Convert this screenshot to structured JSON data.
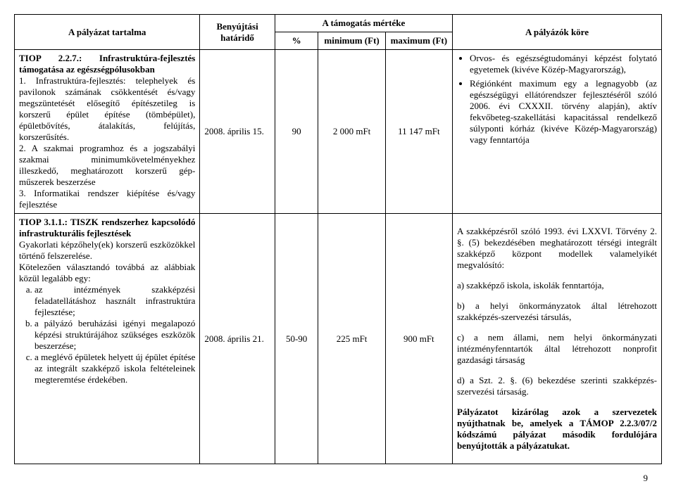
{
  "header": {
    "content": "A pályázat tartalma",
    "deadline": "Benyújtási határidő",
    "support": "A támogatás mértéke",
    "pct": "%",
    "min": "minimum (Ft)",
    "max": "maximum (Ft)",
    "scope": "A pályázók köre"
  },
  "rows": [
    {
      "content_title": "TIOP 2.2.7.: Infrastruktúra-fejlesztés támogatása az egészségpólusokban",
      "content_items": [
        "1. Infrastruktúra-fejlesztés: telephelyek és pavilonok számának csökkentését és/vagy megszüntetését elősegítő építészetileg is korszerű épület építése (tömbépület), épületbővítés, átalakítás, felújítás, korszerűsítés.",
        "2. A szakmai programhoz és a jogszabályi szakmai minimumkövetelményekhez illeszkedő, meghatározott korszerű gép-műszerek beszerzése",
        "3. Informatikai rendszer kiépítése és/vagy fejlesztése"
      ],
      "deadline": "2008. április 15.",
      "pct": "90",
      "min": "2 000 mFt",
      "max": "11 147 mFt",
      "scope_bullets": [
        "Orvos- és egészségtudományi képzést folytató egyetemek (kivéve Közép-Magyarország),",
        "Régiónként maximum egy a legnagyobb (az egészségügyi ellátórendszer fejlesztéséről szóló 2006. évi CXXXII. törvény alapján), aktív fekvőbeteg-szakellátási kapacitással rendelkező súlyponti kórház (kivéve Közép-Magyarország) vagy fenntartója"
      ]
    },
    {
      "content_title": "TIOP 3.1.1.: TISZK rendszerhez kapcsolódó infrastrukturális fejlesztések",
      "content_para1": "Gyakorlati képzőhely(ek) korszerű eszközökkel történő felszerelése.",
      "content_para2": "Kötelezően választandó továbbá az alábbiak közül legalább egy:",
      "content_letters": [
        "az intézmények szakképzési feladatellátáshoz használt infrastruktúra fejlesztése;",
        "a pályázó beruházási igényi megalapozó képzési struktúrájához szükséges eszközök beszerzése;",
        "a meglévő épületek helyett új épület építése az integrált szakképző iskola feltételeinek megteremtése érdekében."
      ],
      "deadline": "2008. április 21.",
      "pct": "50-90",
      "min": "225 mFt",
      "max": "900 mFt",
      "scope_intro": "A szakképzésről szóló 1993. évi LXXVI. Törvény 2. §. (5) bekezdésében meghatározott térségi integrált szakképző központ modellek valamelyikét megvalósító:",
      "scope_lines": [
        "a) szakképző iskola, iskolák fenntartója,",
        "b) a helyi önkormányzatok által létrehozott szakképzés-szervezési társulás,",
        "c) a nem állami, nem helyi önkormányzati intézményfenntartók által létrehozott nonprofit gazdasági társaság",
        "d) a Szt. 2. §. (6) bekezdése szerinti szakképzés-szervezési társaság."
      ],
      "scope_bold": "Pályázatot kizárólag azok a szervezetek nyújthatnak be, amelyek a TÁMOP 2.2.3/07/2 kódszámú pályázat második fordulójára benyújtották a pályázatukat."
    }
  ],
  "pagenum": "9"
}
